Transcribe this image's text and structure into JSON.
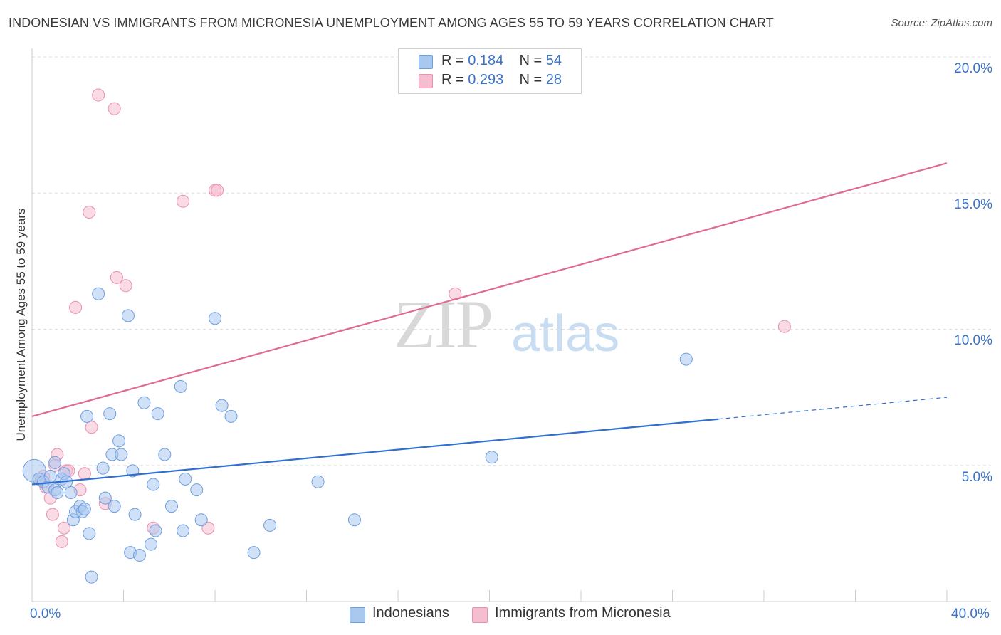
{
  "title": "INDONESIAN VS IMMIGRANTS FROM MICRONESIA UNEMPLOYMENT AMONG AGES 55 TO 59 YEARS CORRELATION CHART",
  "source": "Source: ZipAtlas.com",
  "watermark": {
    "zip": "ZIP",
    "atlas": "atlas"
  },
  "legend": {
    "row1": {
      "r_label": "R =",
      "r_value": "0.184",
      "n_label": "N =",
      "n_value": "54"
    },
    "row2": {
      "r_label": "R =",
      "r_value": "0.293",
      "n_label": "N =",
      "n_value": "28"
    }
  },
  "colors": {
    "blue_fill": "#a9c8f0",
    "blue_stroke": "#6d9ee0",
    "blue_line": "#2f6fcf",
    "pink_fill": "#f6bcd0",
    "pink_stroke": "#e890ae",
    "pink_line": "#e06b92",
    "grid": "#dddddd",
    "tick_text": "#3a73c7"
  },
  "chart_data": {
    "type": "scatter",
    "title": "INDONESIAN VS IMMIGRANTS FROM MICRONESIA UNEMPLOYMENT AMONG AGES 55 TO 59 YEARS CORRELATION CHART",
    "xlabel": "",
    "ylabel": "Unemployment Among Ages 55 to 59 years",
    "xlim": [
      0,
      40
    ],
    "ylim": [
      0,
      20
    ],
    "x_tick_labels": {
      "min": "0.0%",
      "max": "40.0%"
    },
    "y_tick_labels": [
      "5.0%",
      "10.0%",
      "15.0%",
      "20.0%"
    ],
    "y_ticks": [
      5,
      10,
      15,
      20
    ],
    "series": [
      {
        "name": "Indonesians",
        "r": 0.184,
        "n": 54,
        "trend": {
          "x0": 0,
          "y0": 4.3,
          "x1": 30,
          "y1": 6.7,
          "dash_to_x": 40,
          "dash_to_y": 7.5
        },
        "points": [
          [
            0.1,
            4.8
          ],
          [
            0.3,
            4.5
          ],
          [
            0.5,
            4.4
          ],
          [
            0.7,
            4.2
          ],
          [
            0.8,
            4.6
          ],
          [
            1.0,
            4.1
          ],
          [
            1.0,
            5.1
          ],
          [
            1.1,
            4.0
          ],
          [
            1.3,
            4.5
          ],
          [
            1.4,
            4.7
          ],
          [
            1.5,
            4.4
          ],
          [
            1.7,
            4.0
          ],
          [
            1.8,
            3.0
          ],
          [
            1.9,
            3.3
          ],
          [
            2.1,
            3.5
          ],
          [
            2.2,
            3.3
          ],
          [
            2.3,
            3.4
          ],
          [
            2.4,
            6.8
          ],
          [
            2.5,
            2.5
          ],
          [
            2.6,
            0.9
          ],
          [
            2.9,
            11.3
          ],
          [
            3.1,
            4.9
          ],
          [
            3.2,
            3.8
          ],
          [
            3.4,
            6.9
          ],
          [
            3.5,
            5.4
          ],
          [
            3.6,
            3.5
          ],
          [
            3.8,
            5.9
          ],
          [
            3.9,
            5.4
          ],
          [
            4.2,
            10.5
          ],
          [
            4.3,
            1.8
          ],
          [
            4.4,
            4.8
          ],
          [
            4.5,
            3.2
          ],
          [
            4.7,
            1.7
          ],
          [
            4.9,
            7.3
          ],
          [
            5.2,
            2.1
          ],
          [
            5.3,
            4.3
          ],
          [
            5.4,
            2.6
          ],
          [
            5.5,
            6.9
          ],
          [
            5.8,
            5.4
          ],
          [
            6.1,
            3.5
          ],
          [
            6.5,
            7.9
          ],
          [
            6.6,
            2.6
          ],
          [
            6.7,
            4.5
          ],
          [
            7.2,
            4.1
          ],
          [
            7.4,
            3.0
          ],
          [
            8.0,
            10.4
          ],
          [
            8.3,
            7.2
          ],
          [
            8.7,
            6.8
          ],
          [
            9.7,
            1.8
          ],
          [
            10.4,
            2.8
          ],
          [
            12.5,
            4.4
          ],
          [
            14.1,
            3.0
          ],
          [
            20.1,
            5.3
          ],
          [
            28.6,
            8.9
          ]
        ]
      },
      {
        "name": "Immigrants from Micronesia",
        "r": 0.293,
        "n": 28,
        "trend": {
          "x0": 0,
          "y0": 6.8,
          "x1": 40,
          "y1": 16.1
        },
        "points": [
          [
            0.4,
            4.5
          ],
          [
            0.6,
            4.2
          ],
          [
            0.8,
            3.8
          ],
          [
            0.9,
            3.2
          ],
          [
            1.1,
            5.4
          ],
          [
            1.3,
            2.2
          ],
          [
            1.4,
            2.7
          ],
          [
            1.5,
            4.8
          ],
          [
            1.6,
            4.8
          ],
          [
            1.9,
            10.8
          ],
          [
            2.1,
            4.1
          ],
          [
            2.3,
            4.7
          ],
          [
            2.5,
            14.3
          ],
          [
            2.6,
            6.4
          ],
          [
            2.9,
            18.6
          ],
          [
            3.2,
            3.6
          ],
          [
            3.6,
            18.1
          ],
          [
            3.7,
            11.9
          ],
          [
            4.1,
            11.6
          ],
          [
            5.3,
            2.7
          ],
          [
            6.6,
            14.7
          ],
          [
            7.7,
            2.7
          ],
          [
            8.0,
            15.1
          ],
          [
            8.1,
            15.1
          ],
          [
            18.5,
            11.3
          ],
          [
            32.9,
            10.1
          ],
          [
            1.0,
            5.0
          ],
          [
            0.5,
            4.6
          ]
        ]
      }
    ]
  },
  "bottom_legend": {
    "item1": "Indonesians",
    "item2": "Immigrants from Micronesia"
  }
}
